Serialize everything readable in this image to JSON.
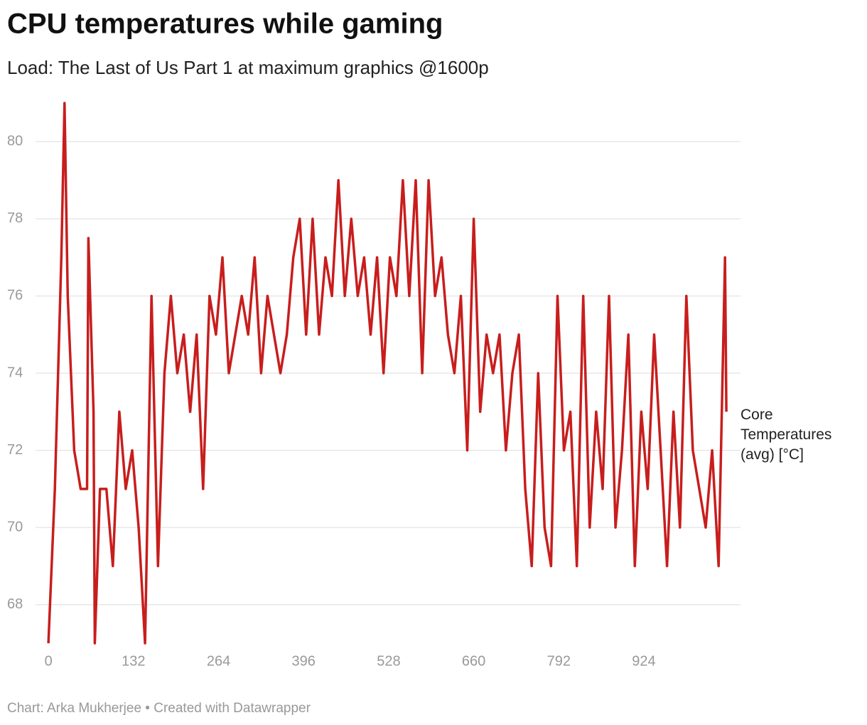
{
  "chart_data": {
    "type": "line",
    "title": "CPU temperatures while gaming",
    "subtitle": "Load: The Last of Us Part 1 at maximum graphics @1600p",
    "source": "Chart: Arka Mukherjee • Created with Datawrapper",
    "x": [
      0,
      10,
      20,
      25,
      30,
      40,
      50,
      60,
      62,
      70,
      72,
      80,
      90,
      100,
      110,
      120,
      130,
      140,
      150,
      160,
      170,
      180,
      190,
      200,
      210,
      220,
      230,
      240,
      250,
      260,
      270,
      280,
      290,
      300,
      310,
      320,
      330,
      340,
      350,
      360,
      370,
      380,
      390,
      400,
      410,
      420,
      430,
      440,
      450,
      460,
      470,
      480,
      490,
      500,
      510,
      520,
      530,
      540,
      550,
      560,
      570,
      580,
      590,
      600,
      610,
      620,
      630,
      640,
      650,
      660,
      670,
      680,
      690,
      700,
      710,
      720,
      730,
      740,
      750,
      760,
      770,
      780,
      790,
      800,
      810,
      820,
      830,
      840,
      850,
      860,
      870,
      880,
      890,
      900,
      910,
      920,
      930,
      940,
      950,
      960,
      970,
      980,
      990,
      1000,
      1010,
      1020,
      1030,
      1040,
      1050,
      1052
    ],
    "series": [
      {
        "name": "Core Temperatures (avg) [°C]",
        "color": "#c71e1d",
        "values": [
          67,
          71,
          77,
          81,
          76,
          72,
          71,
          71,
          77.5,
          73,
          67,
          71,
          71,
          69,
          73,
          71,
          72,
          70,
          67,
          76,
          69,
          74,
          76,
          74,
          75,
          73,
          75,
          71,
          76,
          75,
          77,
          74,
          75,
          76,
          75,
          77,
          74,
          76,
          75,
          74,
          75,
          77,
          78,
          75,
          78,
          75,
          77,
          76,
          79,
          76,
          78,
          76,
          77,
          75,
          77,
          74,
          77,
          76,
          79,
          76,
          79,
          74,
          79,
          76,
          77,
          75,
          74,
          76,
          72,
          78,
          73,
          75,
          74,
          75,
          72,
          74,
          75,
          71,
          69,
          74,
          70,
          69,
          76,
          72,
          73,
          69,
          76,
          70,
          73,
          71,
          76,
          70,
          72,
          75,
          69,
          73,
          71,
          75,
          72,
          69,
          73,
          70,
          76,
          72,
          71,
          70,
          72,
          69,
          77,
          73
        ]
      }
    ],
    "xlim": [
      -20,
      1074
    ],
    "ylim": [
      67,
      81
    ],
    "xticks": [
      0,
      132,
      264,
      396,
      528,
      660,
      792,
      924
    ],
    "yticks": [
      68,
      70,
      72,
      74,
      76,
      78,
      80
    ],
    "grid": true
  }
}
